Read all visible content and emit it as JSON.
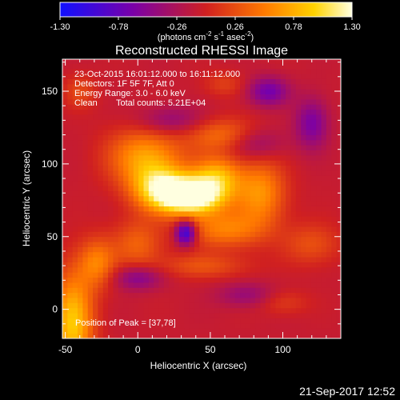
{
  "colorbar": {
    "min": -1.3,
    "max": 1.3,
    "ticks": [
      "-1.30",
      "-0.78",
      "-0.26",
      "0.26",
      "0.78",
      "1.30"
    ],
    "units_parts": [
      "(photons cm",
      "-2",
      " s",
      "-1",
      " asec",
      "-2",
      ")"
    ],
    "colors": [
      "#1010ff",
      "#7a00a8",
      "#d02020",
      "#ff7a00",
      "#ffd200",
      "#ffffe0"
    ]
  },
  "chart_data": {
    "type": "heatmap",
    "title": "Reconstructed RHESSI Image",
    "xlabel": "Heliocentric X (arcsec)",
    "ylabel": "Heliocentric Y (arcsec)",
    "xlim": [
      -52,
      140
    ],
    "ylim": [
      -20,
      172
    ],
    "xticks": [
      -50,
      0,
      50,
      100
    ],
    "yticks": [
      0,
      50,
      100,
      150
    ],
    "peak": [
      37,
      78
    ],
    "annotations": [
      "23-Oct-2015 16:01:12.000 to 16:11:12.000",
      "Detectors: 1F 5F 7F, Att 0",
      "Energy Range: 3.0 - 6.0 keV"
    ],
    "clean_label": "Clean",
    "total_counts": "Total counts: 5.21E+04",
    "peak_label": "Position of Peak = [37,78]"
  },
  "timestamp": "21-Sep-2017 12:52"
}
